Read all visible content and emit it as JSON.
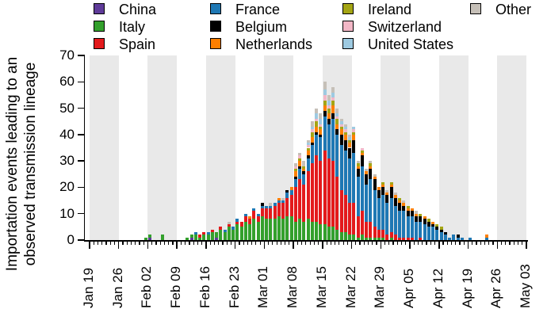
{
  "figure": {
    "background_color": "#ffffff",
    "shaded_band_color": "#e9e9e9",
    "axis_color": "#000000"
  },
  "legend": {
    "items": [
      {
        "label": "China",
        "color": "#5f3b99"
      },
      {
        "label": "Italy",
        "color": "#33a02c"
      },
      {
        "label": "Spain",
        "color": "#e31a1c"
      },
      {
        "label": "France",
        "color": "#1f78b4"
      },
      {
        "label": "Belgium",
        "color": "#000000"
      },
      {
        "label": "Netherlands",
        "color": "#ff7f00"
      },
      {
        "label": "Ireland",
        "color": "#a4a514"
      },
      {
        "label": "Switzerland",
        "color": "#f2b7c6"
      },
      {
        "label": "United States",
        "color": "#9ecae1"
      },
      {
        "label": "Other",
        "color": "#c6c0b8"
      }
    ],
    "items_per_column": 3
  },
  "chart_data": {
    "type": "bar",
    "stacked": true,
    "title": "",
    "xlabel": "",
    "ylabel": "Importation events leading to an observed transmission lineage",
    "ylabel_lines": [
      "Importation events leading to an",
      "observed transmission lineage"
    ],
    "ylim": [
      0,
      70
    ],
    "yticks": [
      0,
      10,
      20,
      30,
      40,
      50,
      60,
      70
    ],
    "grid": false,
    "legend_position": "top",
    "x_axis": {
      "unit": "day",
      "minor_tick_every_days": 1,
      "major_tick_every_days": 7,
      "major_tick_labels": [
        "Jan 19",
        "Jan 26",
        "Feb 02",
        "Feb 09",
        "Feb 16",
        "Feb 23",
        "Mar 01",
        "Mar 08",
        "Mar 15",
        "Mar 22",
        "Mar 29",
        "Apr 05",
        "Apr 12",
        "Apr 19",
        "Apr 26",
        "May 03"
      ],
      "major_tick_day_indices": [
        0,
        7,
        14,
        21,
        28,
        35,
        42,
        49,
        56,
        63,
        70,
        77,
        84,
        91,
        98,
        105
      ],
      "total_days": 105
    },
    "shaded_weeks_start_day": [
      0,
      14,
      28,
      42,
      56,
      70,
      84,
      98
    ],
    "series_order": [
      "China",
      "Italy",
      "Spain",
      "France",
      "Belgium",
      "Netherlands",
      "Ireland",
      "Switzerland",
      "United States",
      "Other"
    ],
    "day_values_columns": [
      "day_index_from_Jan19",
      "China",
      "Italy",
      "Spain",
      "France",
      "Belgium",
      "Netherlands",
      "Ireland",
      "Switzerland",
      "United States",
      "Other"
    ],
    "day_values": [
      [
        13,
        0,
        1,
        0,
        0,
        0,
        0,
        0,
        0,
        0,
        0
      ],
      [
        14,
        1,
        1,
        0,
        0,
        0,
        0,
        0,
        0,
        0,
        0
      ],
      [
        17,
        0,
        2,
        0,
        0,
        0,
        0,
        0,
        0,
        0,
        0
      ],
      [
        23,
        0,
        1,
        0,
        0,
        0,
        0,
        0,
        0,
        0,
        0
      ],
      [
        24,
        1,
        1,
        0,
        0,
        0,
        0,
        0,
        0,
        0,
        0
      ],
      [
        25,
        0,
        2,
        0,
        1,
        0,
        0,
        0,
        0,
        0,
        0
      ],
      [
        26,
        0,
        1,
        1,
        0,
        0,
        0,
        0,
        0,
        0,
        0
      ],
      [
        27,
        0,
        2,
        1,
        0,
        0,
        0,
        0,
        0,
        0,
        0
      ],
      [
        28,
        0,
        2,
        0,
        1,
        0,
        0,
        0,
        0,
        0,
        0
      ],
      [
        29,
        0,
        3,
        1,
        0,
        0,
        0,
        0,
        0,
        0,
        0
      ],
      [
        30,
        1,
        2,
        0,
        0,
        0,
        0,
        0,
        0,
        0,
        0
      ],
      [
        31,
        0,
        4,
        1,
        0,
        0,
        0,
        0,
        0,
        0,
        0
      ],
      [
        32,
        0,
        3,
        0,
        1,
        0,
        0,
        0,
        0,
        0,
        0
      ],
      [
        33,
        0,
        5,
        1,
        0,
        0,
        0,
        0,
        0,
        0,
        1
      ],
      [
        34,
        0,
        4,
        0,
        1,
        0,
        0,
        0,
        0,
        0,
        0
      ],
      [
        35,
        0,
        6,
        1,
        1,
        0,
        0,
        0,
        0,
        0,
        0
      ],
      [
        36,
        0,
        5,
        2,
        0,
        0,
        0,
        0,
        0,
        0,
        0
      ],
      [
        37,
        0,
        7,
        2,
        1,
        0,
        0,
        0,
        0,
        0,
        0
      ],
      [
        38,
        0,
        6,
        2,
        0,
        0,
        1,
        0,
        0,
        0,
        0
      ],
      [
        39,
        0,
        8,
        3,
        1,
        0,
        0,
        0,
        0,
        0,
        0
      ],
      [
        40,
        0,
        7,
        2,
        1,
        0,
        0,
        0,
        0,
        0,
        0
      ],
      [
        41,
        0,
        9,
        3,
        1,
        1,
        0,
        0,
        0,
        0,
        0
      ],
      [
        42,
        0,
        8,
        4,
        1,
        0,
        0,
        0,
        0,
        0,
        0
      ],
      [
        43,
        0,
        8,
        4,
        1,
        0,
        0,
        0,
        0,
        0,
        1
      ],
      [
        44,
        0,
        8,
        5,
        1,
        0,
        0,
        0,
        0,
        0,
        0
      ],
      [
        45,
        0,
        9,
        5,
        1,
        0,
        1,
        0,
        0,
        0,
        0
      ],
      [
        46,
        0,
        8,
        6,
        1,
        0,
        0,
        0,
        0,
        0,
        1
      ],
      [
        47,
        0,
        9,
        7,
        2,
        1,
        0,
        0,
        0,
        0,
        0
      ],
      [
        48,
        0,
        9,
        8,
        2,
        0,
        1,
        0,
        0,
        0,
        0
      ],
      [
        49,
        0,
        7,
        13,
        3,
        1,
        2,
        1,
        1,
        0,
        1
      ],
      [
        50,
        0,
        8,
        15,
        4,
        1,
        2,
        1,
        1,
        0,
        1
      ],
      [
        51,
        0,
        7,
        14,
        4,
        1,
        1,
        1,
        0,
        0,
        2
      ],
      [
        52,
        0,
        8,
        18,
        5,
        1,
        2,
        1,
        1,
        1,
        1
      ],
      [
        53,
        0,
        7,
        22,
        7,
        1,
        2,
        2,
        1,
        1,
        2
      ],
      [
        54,
        0,
        7,
        25,
        8,
        1,
        2,
        2,
        1,
        2,
        2
      ],
      [
        55,
        0,
        6,
        24,
        9,
        1,
        2,
        1,
        1,
        2,
        2
      ],
      [
        56,
        0,
        6,
        28,
        13,
        2,
        2,
        2,
        2,
        2,
        3
      ],
      [
        57,
        0,
        5,
        26,
        13,
        2,
        2,
        2,
        1,
        2,
        2
      ],
      [
        58,
        0,
        5,
        25,
        16,
        2,
        3,
        2,
        1,
        2,
        2
      ],
      [
        59,
        0,
        4,
        20,
        16,
        2,
        2,
        2,
        1,
        1,
        2
      ],
      [
        60,
        0,
        3,
        16,
        17,
        4,
        2,
        1,
        1,
        1,
        1
      ],
      [
        61,
        0,
        3,
        14,
        17,
        4,
        2,
        1,
        1,
        1,
        1
      ],
      [
        62,
        0,
        2,
        12,
        17,
        4,
        2,
        1,
        0,
        1,
        1
      ],
      [
        63,
        0,
        2,
        12,
        19,
        5,
        2,
        1,
        1,
        1,
        0
      ],
      [
        64,
        0,
        1,
        8,
        15,
        3,
        1,
        1,
        0,
        0,
        1
      ],
      [
        65,
        0,
        2,
        9,
        17,
        4,
        1,
        1,
        1,
        0,
        0
      ],
      [
        66,
        0,
        1,
        6,
        14,
        4,
        1,
        0,
        0,
        0,
        1
      ],
      [
        67,
        0,
        1,
        6,
        16,
        4,
        1,
        1,
        0,
        0,
        1
      ],
      [
        68,
        0,
        1,
        4,
        14,
        4,
        1,
        0,
        0,
        0,
        1
      ],
      [
        69,
        0,
        1,
        3,
        12,
        3,
        1,
        0,
        0,
        0,
        0
      ],
      [
        70,
        0,
        1,
        3,
        13,
        3,
        1,
        1,
        0,
        0,
        0
      ],
      [
        71,
        0,
        0,
        2,
        12,
        3,
        1,
        0,
        0,
        0,
        1
      ],
      [
        72,
        0,
        1,
        2,
        13,
        4,
        1,
        1,
        0,
        0,
        0
      ],
      [
        73,
        0,
        0,
        2,
        11,
        3,
        1,
        0,
        0,
        0,
        1
      ],
      [
        74,
        0,
        0,
        1,
        10,
        3,
        1,
        1,
        0,
        0,
        0
      ],
      [
        75,
        0,
        0,
        1,
        10,
        2,
        1,
        0,
        0,
        0,
        1
      ],
      [
        76,
        0,
        0,
        1,
        8,
        2,
        1,
        1,
        0,
        0,
        0
      ],
      [
        77,
        0,
        0,
        1,
        8,
        2,
        1,
        0,
        0,
        0,
        0
      ],
      [
        78,
        0,
        0,
        0,
        7,
        2,
        1,
        0,
        0,
        0,
        1
      ],
      [
        79,
        0,
        0,
        1,
        6,
        2,
        0,
        1,
        0,
        0,
        0
      ],
      [
        80,
        0,
        0,
        0,
        6,
        2,
        1,
        0,
        0,
        0,
        0
      ],
      [
        81,
        0,
        0,
        0,
        5,
        2,
        0,
        1,
        0,
        0,
        0
      ],
      [
        82,
        0,
        0,
        0,
        5,
        1,
        1,
        0,
        0,
        0,
        0
      ],
      [
        83,
        0,
        0,
        0,
        4,
        1,
        0,
        1,
        0,
        0,
        0
      ],
      [
        84,
        0,
        0,
        0,
        3,
        1,
        0,
        1,
        0,
        0,
        0
      ],
      [
        85,
        0,
        0,
        0,
        2,
        1,
        0,
        0,
        0,
        0,
        0
      ],
      [
        86,
        0,
        0,
        0,
        1,
        0,
        0,
        0,
        0,
        0,
        0
      ],
      [
        87,
        0,
        0,
        0,
        2,
        0,
        0,
        0,
        0,
        0,
        0
      ],
      [
        88,
        0,
        0,
        0,
        1,
        1,
        0,
        0,
        0,
        0,
        0
      ],
      [
        89,
        0,
        0,
        0,
        1,
        0,
        0,
        0,
        0,
        0,
        0
      ],
      [
        91,
        0,
        0,
        0,
        1,
        0,
        0,
        0,
        0,
        0,
        0
      ],
      [
        95,
        0,
        0,
        0,
        1,
        0,
        1,
        0,
        0,
        0,
        0
      ]
    ]
  }
}
